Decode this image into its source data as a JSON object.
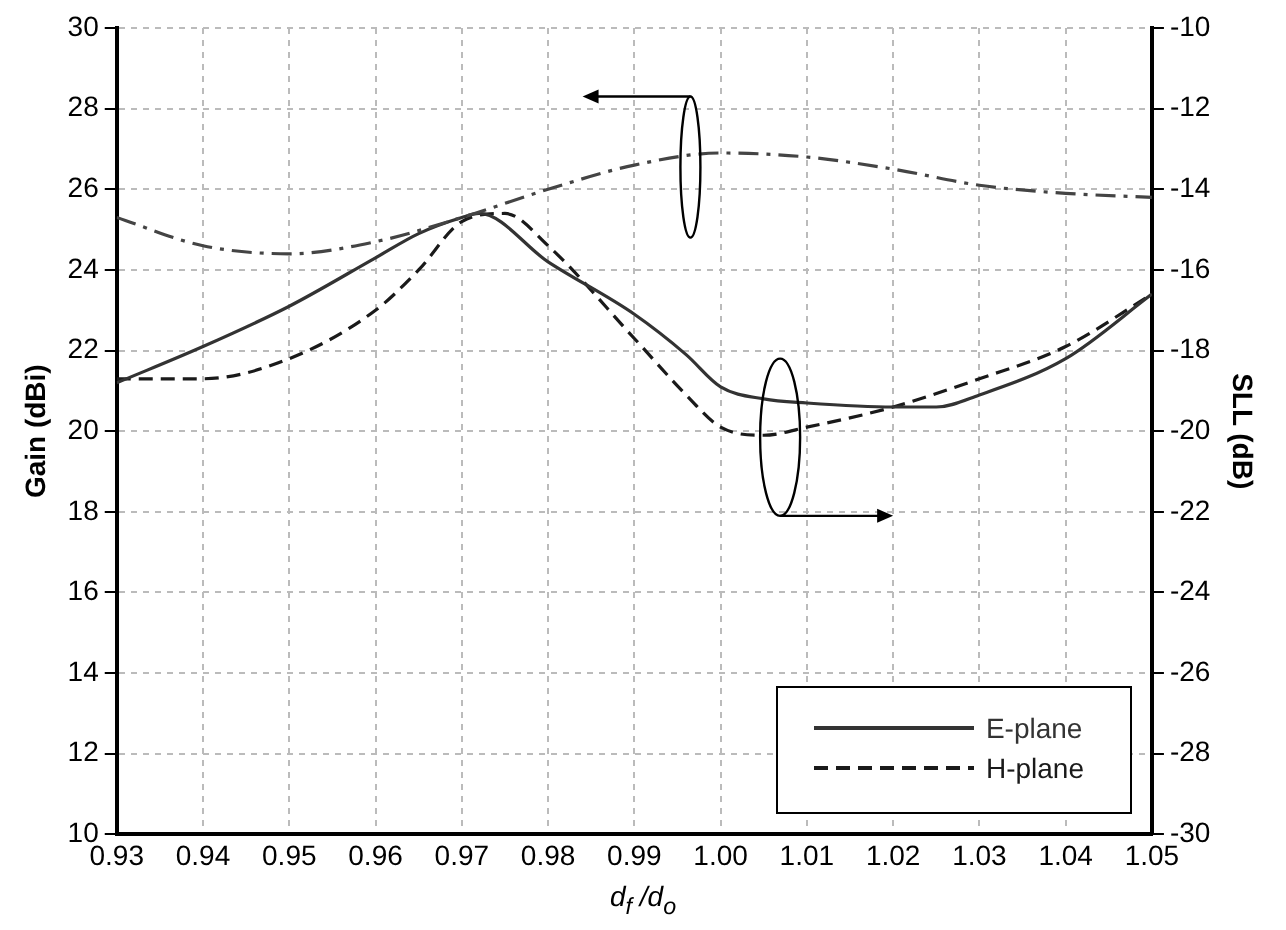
{
  "chart_data": {
    "type": "line",
    "xlabel": "d$_{f}$ /d$_{o}$",
    "ylabel": "Gain (dBi)",
    "y2label": "SLL (dB)",
    "xlim": [
      0.93,
      1.05
    ],
    "xticks": [
      0.93,
      0.94,
      0.95,
      0.96,
      0.97,
      0.98,
      0.99,
      {
        "value": 1,
        "label": "1.00"
      },
      1.01,
      1.02,
      1.03,
      1.04,
      1.05
    ],
    "ylim": [
      10,
      30
    ],
    "yticks": [
      10,
      12,
      14,
      16,
      18,
      20,
      22,
      24,
      26,
      28,
      30
    ],
    "y2lim": [
      -30,
      -10
    ],
    "y2ticks": [
      -30,
      -28,
      -26,
      -24,
      -22,
      -20,
      -18,
      -16,
      -14,
      -12,
      -10
    ],
    "grid": true,
    "legend": "bottom right",
    "marker": "none",
    "series": [
      {
        "color": "#444444",
        "line_style": "dashdot",
        "x": [
          0.93,
          0.94,
          0.95,
          0.96,
          0.97,
          0.98,
          0.99,
          1.0,
          1.01,
          1.02,
          1.03,
          1.04,
          1.05
        ],
        "values": [
          25.3,
          24.6,
          24.4,
          24.7,
          25.3,
          26.0,
          26.6,
          26.9,
          26.8,
          26.5,
          26.1,
          25.9,
          25.8
        ]
      },
      {
        "name": "E-plane",
        "color": "#333333",
        "line_style": "solid",
        "axis": "y2",
        "x": [
          0.93,
          0.94,
          0.95,
          0.96,
          0.965,
          0.97,
          0.972,
          0.98,
          0.99,
          0.996,
          1.0,
          1.005,
          1.01,
          1.02,
          1.025,
          1.03,
          1.04,
          1.05
        ],
        "values": [
          -18.8,
          -17.9,
          -16.9,
          -15.7,
          -15.1,
          -14.7,
          -14.6,
          -15.8,
          -17.1,
          -18.1,
          -18.9,
          -19.2,
          -19.3,
          -19.4,
          -19.4,
          -19.1,
          -18.2,
          -16.6
        ]
      },
      {
        "name": "H-plane",
        "color": "#1a1a1a",
        "line_style": "dashed",
        "axis": "y2",
        "x": [
          0.93,
          0.94,
          0.95,
          0.96,
          0.965,
          0.97,
          0.975,
          0.98,
          0.99,
          0.996,
          1.0,
          1.005,
          1.01,
          1.02,
          1.03,
          1.04,
          1.05
        ],
        "values": [
          -18.7,
          -18.7,
          -18.2,
          -17.0,
          -16.0,
          -14.8,
          -14.6,
          -15.4,
          -17.7,
          -19.1,
          -19.9,
          -20.1,
          -19.9,
          -19.4,
          -18.7,
          -17.9,
          -16.6
        ]
      }
    ]
  }
}
